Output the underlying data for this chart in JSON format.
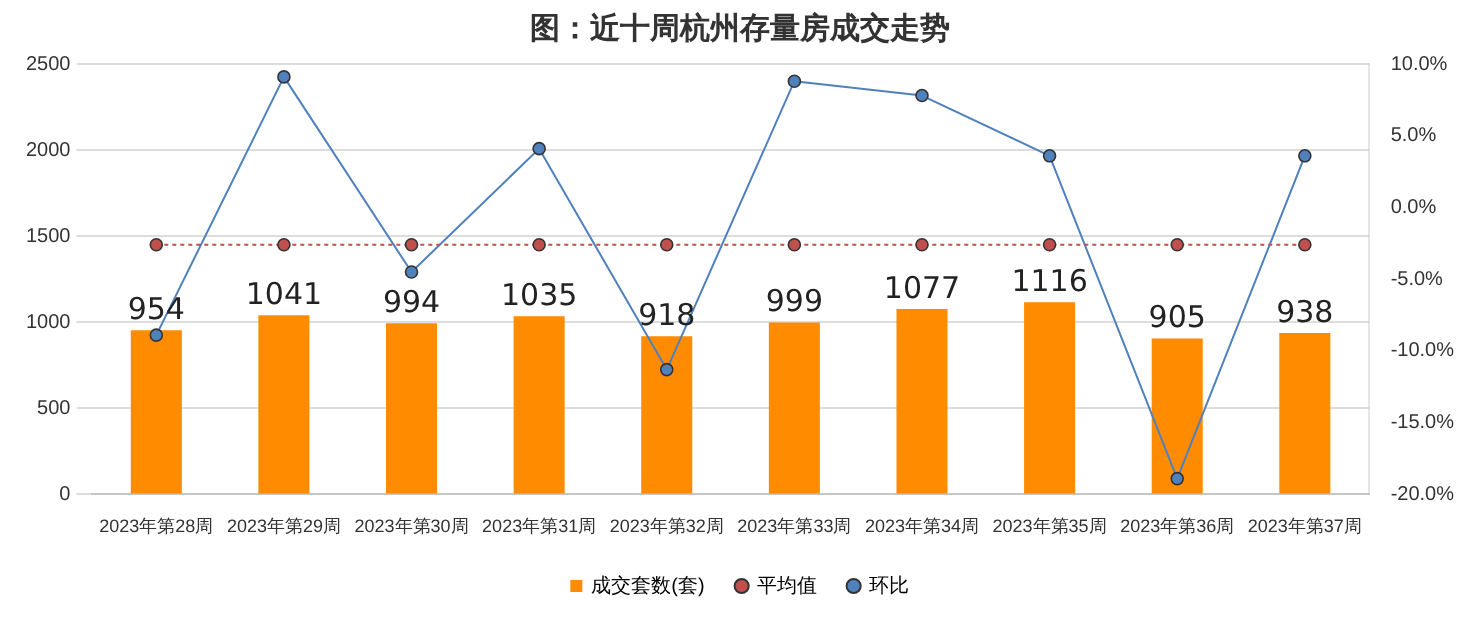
{
  "chart_data": {
    "type": "bar",
    "title": "图：近十周杭州存量房成交走势",
    "categories": [
      "2023年第28周",
      "2023年第29周",
      "2023年第30周",
      "2023年第31周",
      "2023年第32周",
      "2023年第33周",
      "2023年第34周",
      "2023年第35周",
      "2023年第36周",
      "2023年第37周"
    ],
    "series": [
      {
        "name": "成交套数(套)",
        "color": "#ff8c00",
        "values": [
          954,
          1041,
          994,
          1035,
          918,
          999,
          1077,
          1116,
          905,
          938
        ],
        "value_labels": [
          "954",
          "1041",
          "994",
          "1035",
          "918",
          "999",
          "1077",
          "1116",
          "905",
          "938"
        ]
      },
      {
        "name": "平均值",
        "type": "line",
        "axis": "y2",
        "color": "#c0504d",
        "line_style": "dotted",
        "values": [
          -2.6,
          -2.6,
          -2.6,
          -2.6,
          -2.6,
          -2.6,
          -2.6,
          -2.6,
          -2.6,
          -2.6
        ]
      },
      {
        "name": "环比",
        "type": "line",
        "axis": "y2",
        "color": "#4f81bd",
        "line_style": "solid",
        "values": [
          -8.9,
          9.1,
          -4.5,
          4.1,
          -11.3,
          8.8,
          7.8,
          3.6,
          -18.9,
          3.6
        ]
      }
    ],
    "ylim": [
      0,
      2500
    ],
    "yticks": [
      0,
      500,
      1000,
      1500,
      2000,
      2500
    ],
    "y2lim": [
      -20,
      10
    ],
    "y2ticks": [
      {
        "value": -20,
        "label": "-20.0%"
      },
      {
        "value": -15,
        "label": "-15.0%"
      },
      {
        "value": -10,
        "label": "-10.0%"
      },
      {
        "value": -5,
        "label": "-5.0%"
      },
      {
        "value": 0,
        "label": "0.0%"
      },
      {
        "value": 5,
        "label": "5.0%"
      },
      {
        "value": 10,
        "label": "10.0%"
      }
    ],
    "grid": "y",
    "legend": "bottom",
    "marker": "circle"
  }
}
